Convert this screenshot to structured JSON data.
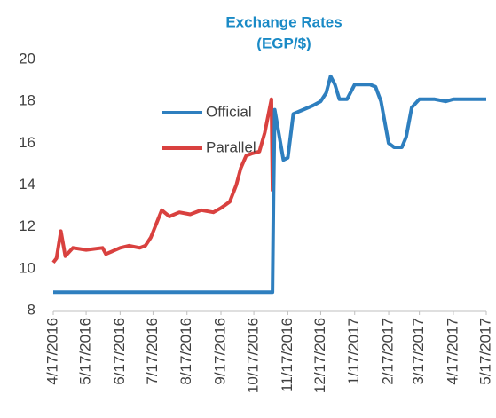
{
  "chart_data": {
    "type": "line",
    "title": "Exchange Rates",
    "subtitle": "(EGP/$)",
    "x": [
      "4/17/2016",
      "4/20/2016",
      "4/24/2016",
      "4/28/2016",
      "5/5/2016",
      "5/17/2016",
      "6/1/2016",
      "6/4/2016",
      "6/17/2016",
      "6/25/2016",
      "7/5/2016",
      "7/10/2016",
      "7/15/2016",
      "7/25/2016",
      "8/1/2016",
      "8/10/2016",
      "8/20/2016",
      "8/30/2016",
      "9/10/2016",
      "9/17/2016",
      "9/25/2016",
      "10/1/2016",
      "10/5/2016",
      "10/10/2016",
      "10/15/2016",
      "10/22/2016",
      "10/27/2016",
      "11/2/2016",
      "11/3/2016",
      "11/4/2016",
      "11/5/2016",
      "11/13/2016",
      "11/17/2016",
      "11/22/2016",
      "12/1/2016",
      "12/10/2016",
      "12/17/2016",
      "12/22/2016",
      "12/26/2016",
      "12/30/2016",
      "1/3/2017",
      "1/10/2017",
      "1/17/2017",
      "1/31/2017",
      "2/5/2017",
      "2/10/2017",
      "2/17/2017",
      "2/22/2017",
      "3/1/2017",
      "3/5/2017",
      "3/10/2017",
      "3/17/2017",
      "3/31/2017",
      "4/10/2017",
      "4/17/2017",
      "5/17/2017"
    ],
    "series": [
      {
        "name": "Official",
        "color": "#2e7fbf",
        "values": [
          8.88,
          8.88,
          8.88,
          8.88,
          8.88,
          8.88,
          8.88,
          8.88,
          8.88,
          8.88,
          8.88,
          8.88,
          8.88,
          8.88,
          8.88,
          8.88,
          8.88,
          8.88,
          8.88,
          8.88,
          8.88,
          8.88,
          8.88,
          8.88,
          8.88,
          8.88,
          8.88,
          8.88,
          8.88,
          13.7,
          17.6,
          15.2,
          15.3,
          17.4,
          17.6,
          17.8,
          18.0,
          18.4,
          19.2,
          18.8,
          18.1,
          18.1,
          18.8,
          18.8,
          18.7,
          18.0,
          16.0,
          15.8,
          15.8,
          16.3,
          17.7,
          18.1,
          18.1,
          18.0,
          18.1,
          18.1
        ]
      },
      {
        "name": "Parallel",
        "color": "#d9413f",
        "values": [
          10.3,
          10.5,
          11.8,
          10.6,
          11.0,
          10.9,
          11.0,
          10.7,
          11.0,
          11.1,
          11.0,
          11.1,
          11.5,
          12.8,
          12.5,
          12.7,
          12.6,
          12.8,
          12.7,
          12.9,
          13.2,
          14.0,
          14.8,
          15.4,
          15.5,
          15.6,
          16.5,
          18.1,
          13.7,
          null,
          null,
          null,
          null,
          null,
          null,
          null,
          null,
          null,
          null,
          null,
          null,
          null,
          null,
          null,
          null,
          null,
          null,
          null,
          null,
          null,
          null,
          null,
          null,
          null,
          null,
          null
        ]
      }
    ],
    "xlim": [
      "4/17/2016",
      "5/17/2017"
    ],
    "xticks": [
      "4/17/2016",
      "5/17/2016",
      "6/17/2016",
      "7/17/2016",
      "8/17/2016",
      "9/17/2016",
      "10/17/2016",
      "11/17/2016",
      "12/17/2016",
      "1/17/2017",
      "2/17/2017",
      "3/17/2017",
      "4/17/2017",
      "5/17/2017"
    ],
    "ylim": [
      8,
      20
    ],
    "yticks": [
      8,
      10,
      12,
      14,
      16,
      18,
      20
    ],
    "grid": false
  }
}
